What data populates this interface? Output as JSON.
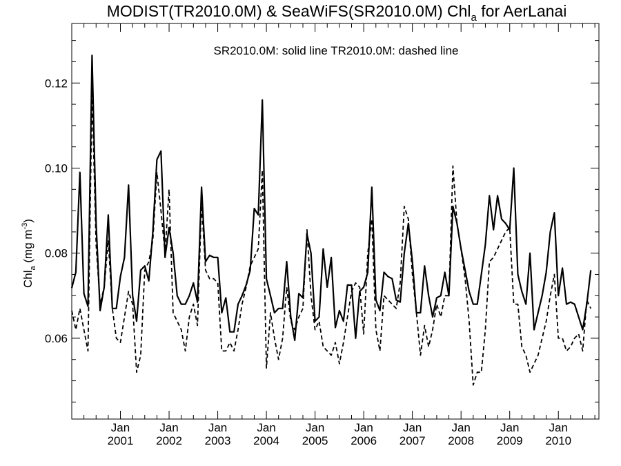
{
  "chart_data": {
    "type": "line",
    "title_parts": {
      "pre": "MODIST(TR2010.0M) & SeaWiFS(SR2010.0M)  Chl",
      "sub": "a",
      "post": " for AerLanai"
    },
    "legend_note": "SR2010.0M: solid line   TR2010.0M: dashed line",
    "ylabel": {
      "pre": "Chl",
      "sub": "a",
      "unit_pre": " (mg m",
      "unit_sup": "-3",
      "unit_post": ")"
    },
    "ylim": [
      0.041,
      0.134
    ],
    "yticks": [
      "0.06",
      "0.08",
      "0.10",
      "0.12"
    ],
    "ytick_values": [
      0.06,
      0.08,
      0.1,
      0.12
    ],
    "xlim": [
      "2000-01",
      "2010-11"
    ],
    "xticks": [
      {
        "month": "Jan",
        "year": "2001",
        "date": "2001-01"
      },
      {
        "month": "Jan",
        "year": "2002",
        "date": "2002-01"
      },
      {
        "month": "Jan",
        "year": "2003",
        "date": "2003-01"
      },
      {
        "month": "Jan",
        "year": "2004",
        "date": "2004-01"
      },
      {
        "month": "Jan",
        "year": "2005",
        "date": "2005-01"
      },
      {
        "month": "Jan",
        "year": "2006",
        "date": "2006-01"
      },
      {
        "month": "Jan",
        "year": "2007",
        "date": "2007-01"
      },
      {
        "month": "Jan",
        "year": "2008",
        "date": "2008-01"
      },
      {
        "month": "Jan",
        "year": "2009",
        "date": "2009-01"
      },
      {
        "month": "Jan",
        "year": "2010",
        "date": "2010-01"
      }
    ],
    "start_month": "2000-01",
    "series": [
      {
        "name": "SR2010.0M",
        "style": "solid",
        "values": [
          0.0718,
          0.0755,
          0.099,
          0.0705,
          0.0675,
          0.1265,
          0.087,
          0.0665,
          0.072,
          0.089,
          0.067,
          0.067,
          0.0745,
          0.079,
          0.096,
          0.07,
          0.064,
          0.076,
          0.077,
          0.0735,
          0.085,
          0.102,
          0.104,
          0.079,
          0.086,
          0.08,
          0.07,
          0.068,
          0.068,
          0.07,
          0.073,
          0.0685,
          0.0955,
          0.078,
          0.0795,
          0.079,
          0.079,
          0.066,
          0.0695,
          0.0615,
          0.0615,
          0.068,
          0.07,
          0.0725,
          0.076,
          0.0905,
          0.089,
          0.116,
          0.074,
          0.07,
          0.066,
          0.067,
          0.067,
          0.078,
          0.065,
          0.0595,
          0.0705,
          0.0695,
          0.0845,
          0.08,
          0.064,
          0.065,
          0.081,
          0.072,
          0.079,
          0.0625,
          0.0665,
          0.064,
          0.0725,
          0.0725,
          0.06,
          0.071,
          0.072,
          0.0755,
          0.0955,
          0.069,
          0.0665,
          0.0755,
          0.0745,
          0.074,
          0.069,
          0.0685,
          0.08,
          0.087,
          0.078,
          0.066,
          0.066,
          0.077,
          0.07,
          0.065,
          0.0695,
          0.07,
          0.0755,
          0.07,
          0.091,
          0.087,
          0.081,
          0.076,
          0.071,
          0.068,
          0.068,
          0.075,
          0.082,
          0.0935,
          0.0855,
          0.0935,
          0.088,
          0.087,
          0.0855,
          0.1,
          0.075,
          0.071,
          0.068,
          0.08,
          0.062,
          0.066,
          0.07,
          0.0755,
          0.085,
          0.0895,
          0.07,
          0.0765,
          0.068,
          0.0685,
          0.068,
          0.065,
          0.062,
          0.068,
          0.076
        ]
      },
      {
        "name": "TR2010.0M",
        "style": "dashed",
        "values": [
          0.0665,
          0.062,
          0.067,
          0.062,
          0.057,
          0.118,
          0.082,
          0.068,
          0.072,
          0.083,
          0.067,
          0.06,
          0.059,
          0.065,
          0.071,
          0.068,
          0.052,
          0.056,
          0.076,
          0.078,
          0.083,
          0.099,
          0.09,
          0.08,
          0.095,
          0.066,
          0.064,
          0.062,
          0.057,
          0.065,
          0.068,
          0.063,
          0.092,
          0.076,
          0.074,
          0.074,
          0.073,
          0.057,
          0.057,
          0.059,
          0.057,
          0.062,
          0.068,
          0.072,
          0.077,
          0.079,
          0.081,
          0.0995,
          0.053,
          0.066,
          0.06,
          0.055,
          0.06,
          0.072,
          0.064,
          0.062,
          0.065,
          0.067,
          0.0855,
          0.07,
          0.062,
          0.064,
          0.058,
          0.057,
          0.056,
          0.059,
          0.054,
          0.059,
          0.065,
          0.071,
          0.073,
          0.072,
          0.061,
          0.08,
          0.088,
          0.062,
          0.057,
          0.07,
          0.069,
          0.068,
          0.067,
          0.073,
          0.091,
          0.088,
          0.075,
          0.066,
          0.056,
          0.063,
          0.058,
          0.062,
          0.068,
          0.065,
          0.07,
          0.07,
          0.1005,
          0.087,
          0.081,
          0.074,
          0.064,
          0.049,
          0.052,
          0.052,
          0.062,
          0.078,
          0.079,
          0.081,
          0.083,
          0.085,
          0.086,
          0.068,
          0.068,
          0.058,
          0.056,
          0.052,
          0.054,
          0.056,
          0.06,
          0.064,
          0.07,
          0.075,
          0.06,
          0.06,
          0.057,
          0.058,
          0.06,
          0.061,
          0.057,
          0.069,
          0.067
        ]
      }
    ],
    "grid": false,
    "colors": {
      "line": "#000000",
      "axis": "#000000",
      "background": "#ffffff"
    }
  }
}
